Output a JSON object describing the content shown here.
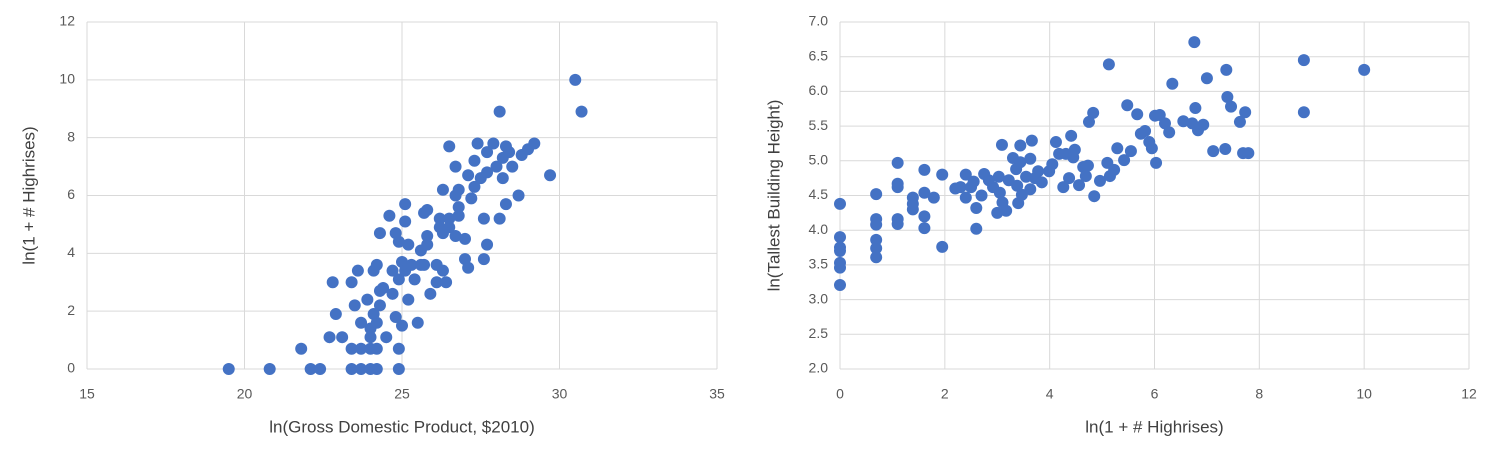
{
  "chart_data": [
    {
      "type": "scatter",
      "x_label": "ln(Gross Domestic Product, $2010)",
      "y_label": "ln(1 + # Highrises)",
      "color": "#4472c4",
      "grid": true,
      "xlim": [
        15,
        35
      ],
      "xticks": [
        15,
        20,
        25,
        30,
        35
      ],
      "ylim": [
        0,
        12
      ],
      "yticks": [
        0,
        2,
        4,
        6,
        8,
        10,
        12
      ],
      "x": [
        19.5,
        20.8,
        21.8,
        22.1,
        22.4,
        22.8,
        22.7,
        22.9,
        23.1,
        23.4,
        23.4,
        23.4,
        23.5,
        23.6,
        23.7,
        23.7,
        23.7,
        23.9,
        24.0,
        24.0,
        24.0,
        24.0,
        24.1,
        24.1,
        24.2,
        24.2,
        24.2,
        24.2,
        24.3,
        24.3,
        24.3,
        24.4,
        24.5,
        24.6,
        24.7,
        24.7,
        24.8,
        24.8,
        24.9,
        24.9,
        24.9,
        24.9,
        25.0,
        25.0,
        25.1,
        25.1,
        25.1,
        25.2,
        25.2,
        25.3,
        25.4,
        25.5,
        25.6,
        25.6,
        25.7,
        25.7,
        25.8,
        25.8,
        25.8,
        25.9,
        26.1,
        26.1,
        26.2,
        26.2,
        26.3,
        26.3,
        26.3,
        26.4,
        26.5,
        26.5,
        26.5,
        26.7,
        26.7,
        26.7,
        26.8,
        26.8,
        26.8,
        27.0,
        27.0,
        27.1,
        27.1,
        27.2,
        27.3,
        27.3,
        27.4,
        27.5,
        27.6,
        27.6,
        27.7,
        27.7,
        27.7,
        27.9,
        28.0,
        28.1,
        28.1,
        28.2,
        28.2,
        28.3,
        28.3,
        28.4,
        28.5,
        28.7,
        28.8,
        29.0,
        29.2,
        29.7,
        30.5,
        30.7
      ],
      "values": [
        0,
        0,
        0.7,
        0,
        0,
        3.0,
        1.1,
        1.9,
        1.1,
        3.0,
        0.7,
        0,
        2.2,
        3.4,
        0,
        1.6,
        0.7,
        2.4,
        1.4,
        1.1,
        0.7,
        0,
        3.4,
        1.9,
        3.6,
        0,
        0.7,
        1.6,
        2.7,
        4.7,
        2.2,
        2.8,
        1.1,
        5.3,
        3.4,
        2.6,
        4.7,
        1.8,
        0.7,
        0,
        4.4,
        3.1,
        1.5,
        3.7,
        5.1,
        5.7,
        3.4,
        4.3,
        2.4,
        3.6,
        3.1,
        1.6,
        3.6,
        4.1,
        5.4,
        3.6,
        4.3,
        5.5,
        4.6,
        2.6,
        3.0,
        3.6,
        4.9,
        5.2,
        3.4,
        6.2,
        4.7,
        3.0,
        5.2,
        7.7,
        4.9,
        6.0,
        7.0,
        4.6,
        5.3,
        6.2,
        5.6,
        4.5,
        3.8,
        3.5,
        6.7,
        5.9,
        6.3,
        7.2,
        7.8,
        6.6,
        3.8,
        5.2,
        4.3,
        7.5,
        6.8,
        7.8,
        7.0,
        5.2,
        8.9,
        7.3,
        6.6,
        7.7,
        5.7,
        7.5,
        7.0,
        6.0,
        7.4,
        7.6,
        7.8,
        6.7,
        10.0,
        8.9
      ]
    },
    {
      "type": "scatter",
      "x_label": "ln(1 + # Highrises)",
      "y_label": "ln(Tallest Building Height)",
      "color": "#4472c4",
      "grid": true,
      "xlim": [
        0,
        12
      ],
      "xticks": [
        0,
        2,
        4,
        6,
        8,
        10,
        12
      ],
      "ylim": [
        2,
        7
      ],
      "yticks": [
        {
          "value": 2,
          "label": "2.0"
        },
        2.5,
        {
          "value": 3,
          "label": "3.0"
        },
        3.5,
        {
          "value": 4,
          "label": "4.0"
        },
        4.5,
        {
          "value": 5,
          "label": "5.0"
        },
        5.5,
        {
          "value": 6,
          "label": "6.0"
        },
        6.5,
        {
          "value": 7,
          "label": "7.0"
        }
      ],
      "x": [
        0,
        0,
        0,
        0,
        0,
        0,
        0,
        0.69,
        0.69,
        0.69,
        0.69,
        0.69,
        0.69,
        1.1,
        1.1,
        1.1,
        1.1,
        1.1,
        1.39,
        1.39,
        1.39,
        1.61,
        1.61,
        1.61,
        1.61,
        1.79,
        1.95,
        1.95,
        2.2,
        2.3,
        2.4,
        2.4,
        2.5,
        2.55,
        2.6,
        2.6,
        2.7,
        2.75,
        2.84,
        2.92,
        3.0,
        3.03,
        3.05,
        3.09,
        3.1,
        3.17,
        3.22,
        3.3,
        3.36,
        3.38,
        3.4,
        3.44,
        3.44,
        3.47,
        3.55,
        3.63,
        3.63,
        3.66,
        3.72,
        3.78,
        3.85,
        3.99,
        4.05,
        4.12,
        4.18,
        4.26,
        4.31,
        4.37,
        4.41,
        4.45,
        4.48,
        4.56,
        4.64,
        4.69,
        4.73,
        4.75,
        4.83,
        4.85,
        4.96,
        5.1,
        5.13,
        5.15,
        5.23,
        5.29,
        5.42,
        5.48,
        5.55,
        5.67,
        5.74,
        5.82,
        5.9,
        5.95,
        6.01,
        6.03,
        6.1,
        6.2,
        6.28,
        6.34,
        6.55,
        6.72,
        6.76,
        6.78,
        6.83,
        6.93,
        7.0,
        7.12,
        7.35,
        7.37,
        7.39,
        7.46,
        7.63,
        7.69,
        7.73,
        7.79,
        8.85,
        8.85,
        10.0
      ],
      "values": [
        4.38,
        3.9,
        3.75,
        3.7,
        3.53,
        3.46,
        3.21,
        4.52,
        4.16,
        4.08,
        3.86,
        3.74,
        3.61,
        4.97,
        4.67,
        4.62,
        4.16,
        4.09,
        4.47,
        4.38,
        4.3,
        4.87,
        4.54,
        4.2,
        4.03,
        4.47,
        4.8,
        3.76,
        4.6,
        4.62,
        4.8,
        4.47,
        4.62,
        4.7,
        4.32,
        4.02,
        4.5,
        4.81,
        4.72,
        4.62,
        4.25,
        4.77,
        4.54,
        5.23,
        4.4,
        4.28,
        4.72,
        5.04,
        4.88,
        4.64,
        4.39,
        5.22,
        4.98,
        4.51,
        4.77,
        4.59,
        5.03,
        5.29,
        4.75,
        4.85,
        4.69,
        4.85,
        4.95,
        5.27,
        5.1,
        4.62,
        5.1,
        4.75,
        5.36,
        5.05,
        5.16,
        4.65,
        4.91,
        4.78,
        4.93,
        5.56,
        5.69,
        4.49,
        4.71,
        4.97,
        6.39,
        4.78,
        4.87,
        5.18,
        5.01,
        5.8,
        5.14,
        5.67,
        5.39,
        5.43,
        5.27,
        5.18,
        5.65,
        4.97,
        5.66,
        5.54,
        5.41,
        6.11,
        5.57,
        5.54,
        6.71,
        5.76,
        5.44,
        5.52,
        6.19,
        5.14,
        5.17,
        6.31,
        5.92,
        5.78,
        5.56,
        5.11,
        5.7,
        5.11,
        6.45,
        5.7,
        6.31
      ]
    }
  ]
}
